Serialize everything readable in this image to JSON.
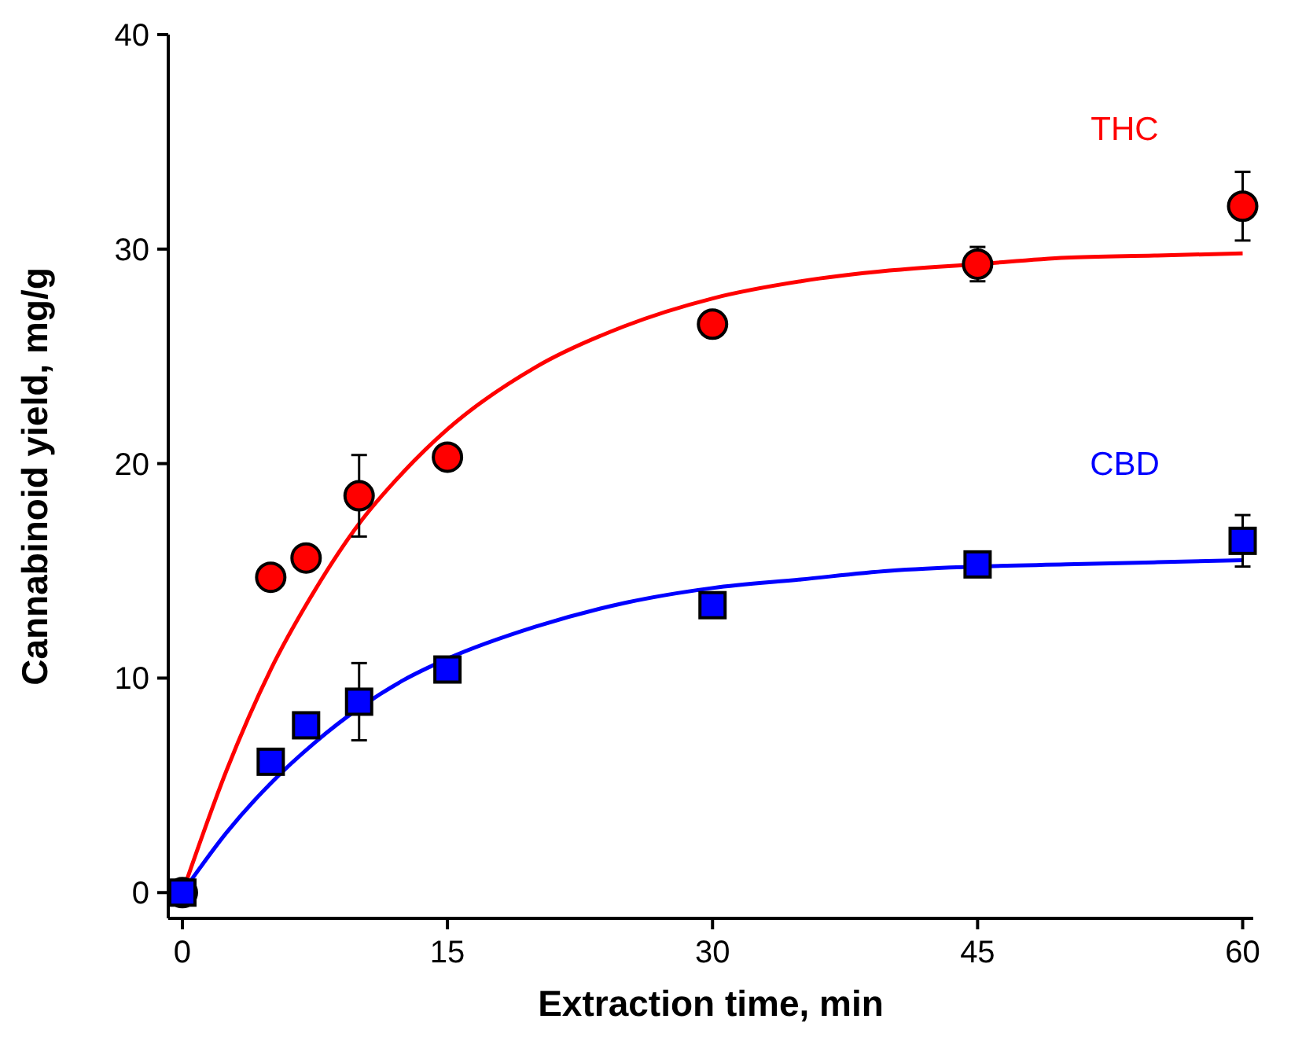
{
  "chart_data": {
    "type": "scatter",
    "xlabel": "Extraction time, min",
    "ylabel": "Cannabinoid yield, mg/g",
    "xlim": [
      -0.8,
      60.6
    ],
    "xticks": [
      0,
      15,
      30,
      45,
      60
    ],
    "ylim": [
      -1.2,
      40
    ],
    "yticks": [
      0,
      10,
      20,
      30,
      40
    ],
    "grid": false,
    "series": [
      {
        "name": "THC",
        "color": "#ff0000",
        "marker": "circle",
        "x": [
          0,
          5,
          7,
          10,
          15,
          30,
          45,
          60
        ],
        "values": [
          0,
          14.7,
          15.6,
          18.5,
          20.3,
          26.5,
          29.3,
          32.0
        ],
        "errors": [
          null,
          null,
          null,
          1.9,
          null,
          null,
          0.8,
          1.6
        ]
      },
      {
        "name": "CBD",
        "color": "#0000ff",
        "marker": "square",
        "x": [
          0,
          5,
          7,
          10,
          15,
          30,
          45,
          60
        ],
        "values": [
          0,
          6.1,
          7.8,
          8.9,
          10.4,
          13.4,
          15.3,
          16.4
        ],
        "errors": [
          null,
          null,
          null,
          1.8,
          null,
          null,
          0.4,
          1.2
        ]
      },
      {
        "type": "line",
        "color": "#ff0000",
        "marker": "none",
        "x": [
          0,
          2.5,
          5,
          7.5,
          10,
          12.5,
          15,
          20,
          25,
          30,
          35,
          40,
          45,
          50,
          55,
          60
        ],
        "values": [
          0,
          5.7,
          10.4,
          14.1,
          17.2,
          19.6,
          21.6,
          24.5,
          26.4,
          27.7,
          28.5,
          29.0,
          29.3,
          29.6,
          29.7,
          29.8
        ]
      },
      {
        "type": "line",
        "color": "#0000ff",
        "marker": "none",
        "x": [
          0,
          2.5,
          5,
          7.5,
          10,
          12.5,
          15,
          20,
          25,
          30,
          35,
          40,
          45,
          50,
          55,
          60
        ],
        "values": [
          0,
          2.8,
          5.1,
          7.0,
          8.6,
          9.9,
          10.9,
          12.4,
          13.5,
          14.2,
          14.6,
          15.0,
          15.2,
          15.3,
          15.4,
          15.5
        ]
      }
    ]
  }
}
